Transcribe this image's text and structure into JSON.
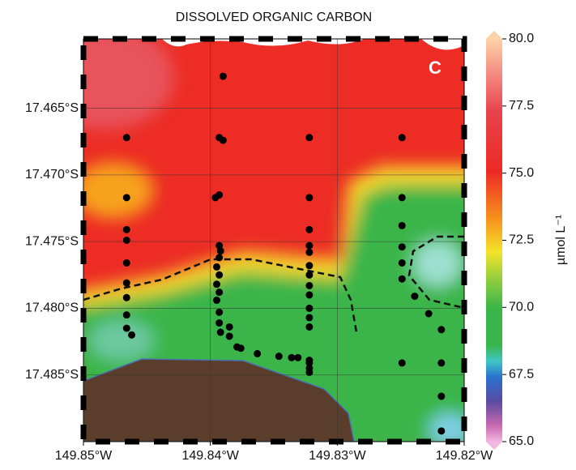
{
  "chart_data": {
    "type": "scatter",
    "title": "DISSOLVED ORGANIC CARBON",
    "panel_label": "C",
    "color": "#000000",
    "xlim": [
      -149.85,
      -149.82
    ],
    "ylim": [
      -17.49,
      -17.4598
    ],
    "xticks": [
      {
        "value": -149.85,
        "label": "149.85°W"
      },
      {
        "value": -149.84,
        "label": "149.84°W"
      },
      {
        "value": -149.83,
        "label": "149.83°W"
      },
      {
        "value": -149.82,
        "label": "149.82°W"
      }
    ],
    "yticks": [
      {
        "value": -17.465,
        "label": "17.465°S"
      },
      {
        "value": -17.47,
        "label": "17.470°S"
      },
      {
        "value": -17.475,
        "label": "17.475°S"
      },
      {
        "value": -17.48,
        "label": "17.480°S"
      },
      {
        "value": -17.485,
        "label": "17.485°S"
      }
    ],
    "colorbar": {
      "label": "µmol L⁻¹",
      "lim": [
        65,
        80
      ],
      "ticks": [
        {
          "value": 80,
          "label": "80.0"
        },
        {
          "value": 77.5,
          "label": "77.5"
        },
        {
          "value": 75,
          "label": "75.0"
        },
        {
          "value": 72.5,
          "label": "72.5"
        },
        {
          "value": 70,
          "label": "70.0"
        },
        {
          "value": 67.5,
          "label": "67.5"
        },
        {
          "value": 65,
          "label": "65.0"
        }
      ]
    },
    "x": [
      -149.8466,
      -149.8466,
      -149.8466,
      -149.8466,
      -149.8466,
      -149.8466,
      -149.8466,
      -149.8466,
      -149.8466,
      -149.8462,
      -149.839,
      -149.8393,
      -149.839,
      -149.8393,
      -149.8396,
      -149.8393,
      -149.8392,
      -149.8393,
      -149.8395,
      -149.8393,
      -149.8395,
      -149.8393,
      -149.8395,
      -149.8393,
      -149.8393,
      -149.8392,
      -149.8385,
      -149.8385,
      -149.8379,
      -149.8376,
      -149.8363,
      -149.8346,
      -149.8336,
      -149.8331,
      -149.8322,
      -149.8322,
      -149.8322,
      -149.8322,
      -149.8322,
      -149.8322,
      -149.8322,
      -149.8322,
      -149.8322,
      -149.8322,
      -149.8322,
      -149.8322,
      -149.8322,
      -149.8322,
      -149.8322,
      -149.8322,
      -149.8249,
      -149.8249,
      -149.8249,
      -149.8249,
      -149.8249,
      -149.8249,
      -149.8249,
      -149.8239,
      -149.8228,
      -149.8218,
      -149.8218,
      -149.8218,
      -149.8218
    ],
    "values": [
      -17.4672,
      -17.4717,
      -17.4741,
      -17.4749,
      -17.4766,
      -17.4781,
      -17.4792,
      -17.4805,
      -17.4815,
      -17.482,
      -17.4626,
      -17.4672,
      -17.4674,
      -17.4715,
      -17.4717,
      -17.4753,
      -17.4757,
      -17.4762,
      -17.4769,
      -17.4775,
      -17.4782,
      -17.4788,
      -17.4794,
      -17.4803,
      -17.4811,
      -17.4818,
      -17.4814,
      -17.4821,
      -17.4829,
      -17.483,
      -17.4834,
      -17.4836,
      -17.4837,
      -17.4837,
      -17.4839,
      -17.4672,
      -17.4717,
      -17.4741,
      -17.4753,
      -17.4758,
      -17.4768,
      -17.4775,
      -17.4783,
      -17.479,
      -17.48,
      -17.4807,
      -17.4814,
      -17.4841,
      -17.4845,
      -17.4848,
      -17.4672,
      -17.4717,
      -17.4738,
      -17.4754,
      -17.4766,
      -17.4778,
      -17.4841,
      -17.4791,
      -17.4804,
      -17.4816,
      -17.4841,
      -17.4866,
      -17.4892
    ]
  }
}
